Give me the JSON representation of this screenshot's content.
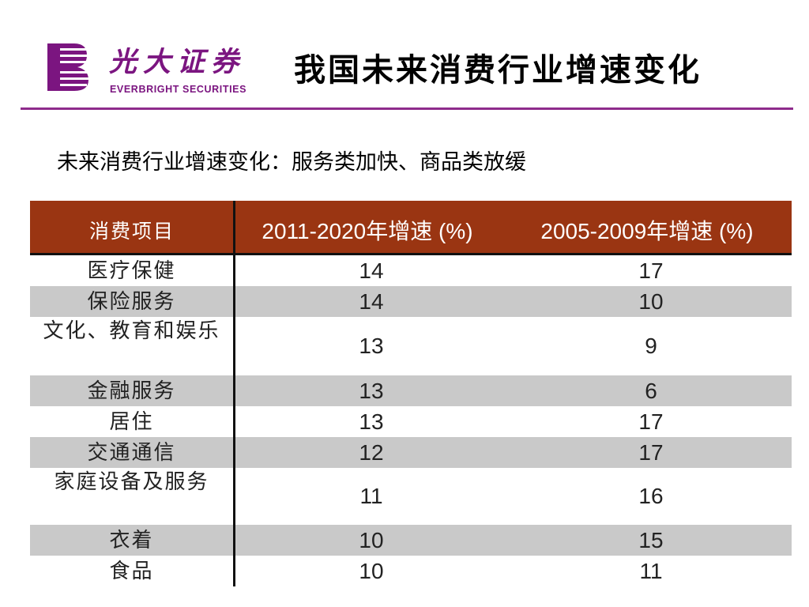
{
  "header": {
    "logo_cn": "光大证券",
    "logo_en": "EVERBRIGHT SECURITIES",
    "title": "我国未来消费行业增速变化"
  },
  "subtitle": "未来消费行业增速变化：服务类加快、商品类放缓",
  "colors": {
    "brand": "#7b1580",
    "rule": "#8e2b8c",
    "table_header": "#9a3512",
    "row_shade": "#c9c9c9"
  },
  "table": {
    "headers": [
      "消费项目",
      "2011-2020年增速 (%)",
      "2005-2009年增速 (%)"
    ],
    "rows": [
      {
        "item": "医疗保健",
        "v2011_2020": "14",
        "v2005_2009": "17"
      },
      {
        "item": "保险服务",
        "v2011_2020": "14",
        "v2005_2009": "10"
      },
      {
        "item": "文化、教育和娱乐",
        "v2011_2020": "13",
        "v2005_2009": "9"
      },
      {
        "item": "金融服务",
        "v2011_2020": "13",
        "v2005_2009": "6"
      },
      {
        "item": "居住",
        "v2011_2020": "13",
        "v2005_2009": "17"
      },
      {
        "item": "交通通信",
        "v2011_2020": "12",
        "v2005_2009": "17"
      },
      {
        "item": "家庭设备及服务",
        "v2011_2020": "11",
        "v2005_2009": "16"
      },
      {
        "item": "衣着",
        "v2011_2020": "10",
        "v2005_2009": "15"
      },
      {
        "item": "食品",
        "v2011_2020": "10",
        "v2005_2009": "11"
      }
    ]
  }
}
